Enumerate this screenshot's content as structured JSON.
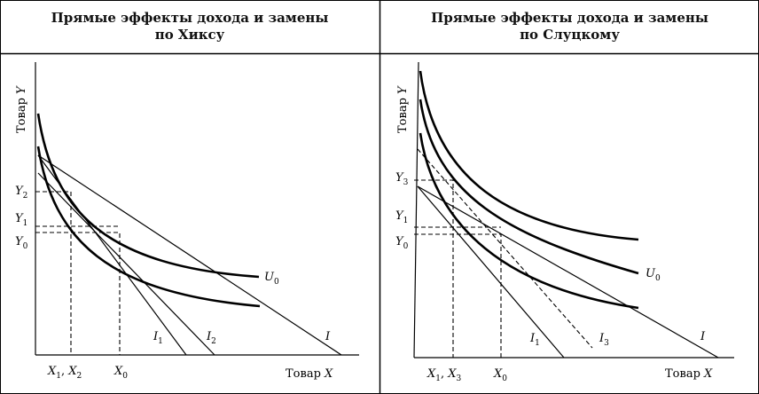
{
  "left_panel": {
    "title_line1": "Прямые эффекты дохода и замены",
    "title_line2": "по Хиксу",
    "axis_y": "Товар ",
    "axis_y_var": "Y",
    "axis_x": "Товар ",
    "axis_x_var": "X",
    "labels": {
      "Y2": "Y",
      "Y2_sub": "2",
      "Y1": "Y",
      "Y1_sub": "1",
      "Y0": "Y",
      "Y0_sub": "0",
      "X1X2_a": "X",
      "X1X2_a_sub": "1",
      "X1X2_sep": ", ",
      "X1X2_b": "X",
      "X1X2_b_sub": "2",
      "X0": "X",
      "X0_sub": "0",
      "U0": "U",
      "U0_sub": "0",
      "I1": "I",
      "I1_sub": "1",
      "I2": "I",
      "I2_sub": "2",
      "I": "I"
    }
  },
  "right_panel": {
    "title_line1": "Прямые эффекты дохода и замены",
    "title_line2": "по Слуцкому",
    "axis_y": "Товар ",
    "axis_y_var": "Y",
    "axis_x": "Товар ",
    "axis_x_var": "X",
    "labels": {
      "Y3": "Y",
      "Y3_sub": "3",
      "Y1": "Y",
      "Y1_sub": "1",
      "Y0": "Y",
      "Y0_sub": "0",
      "X1X3_a": "X",
      "X1X3_a_sub": "1",
      "X1X3_sep": ", ",
      "X1X3_b": "X",
      "X1X3_b_sub": "3",
      "X0": "X",
      "X0_sub": "0",
      "U0": "U",
      "U0_sub": "0",
      "I1": "I",
      "I1_sub": "1",
      "I3": "I",
      "I3_sub": "3",
      "I": "I"
    }
  }
}
